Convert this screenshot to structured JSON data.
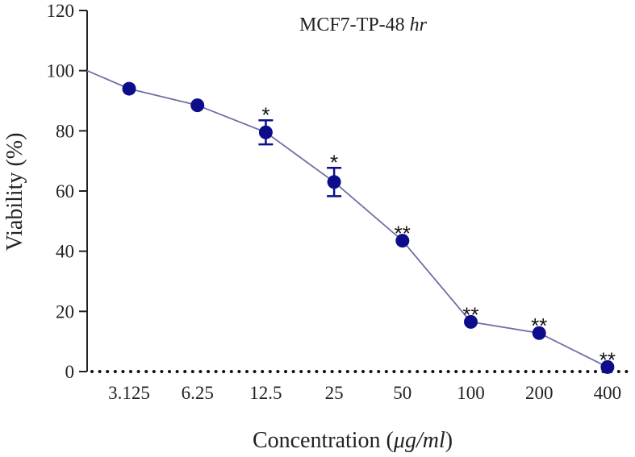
{
  "chart_data": {
    "type": "line",
    "title": {
      "main": "MCF7-TP-48",
      "italic": "hr"
    },
    "xlabel": {
      "prefix": "Concentration (",
      "italic": "μg/ml",
      "suffix": ")"
    },
    "ylabel": "Viability (%)",
    "ylim": [
      0,
      120
    ],
    "yticks": [
      0,
      20,
      40,
      60,
      80,
      100,
      120
    ],
    "categories": [
      "3.125",
      "6.25",
      "12.5",
      "25",
      "50",
      "100",
      "200",
      "400"
    ],
    "series": [
      {
        "name": "MCF7-TP-48 hr",
        "start_value": 100,
        "values": [
          94,
          88.5,
          79.5,
          63,
          43.5,
          16.5,
          12.8,
          1.5
        ],
        "errors": [
          0,
          0,
          4,
          4.7,
          0,
          0,
          0,
          0
        ],
        "significance": [
          "",
          "",
          "*",
          "*",
          "**",
          "**",
          "**",
          "**"
        ],
        "color": "#0d0d8c",
        "line_color": "#6f6fa8"
      }
    ],
    "baseline": "dotted"
  }
}
